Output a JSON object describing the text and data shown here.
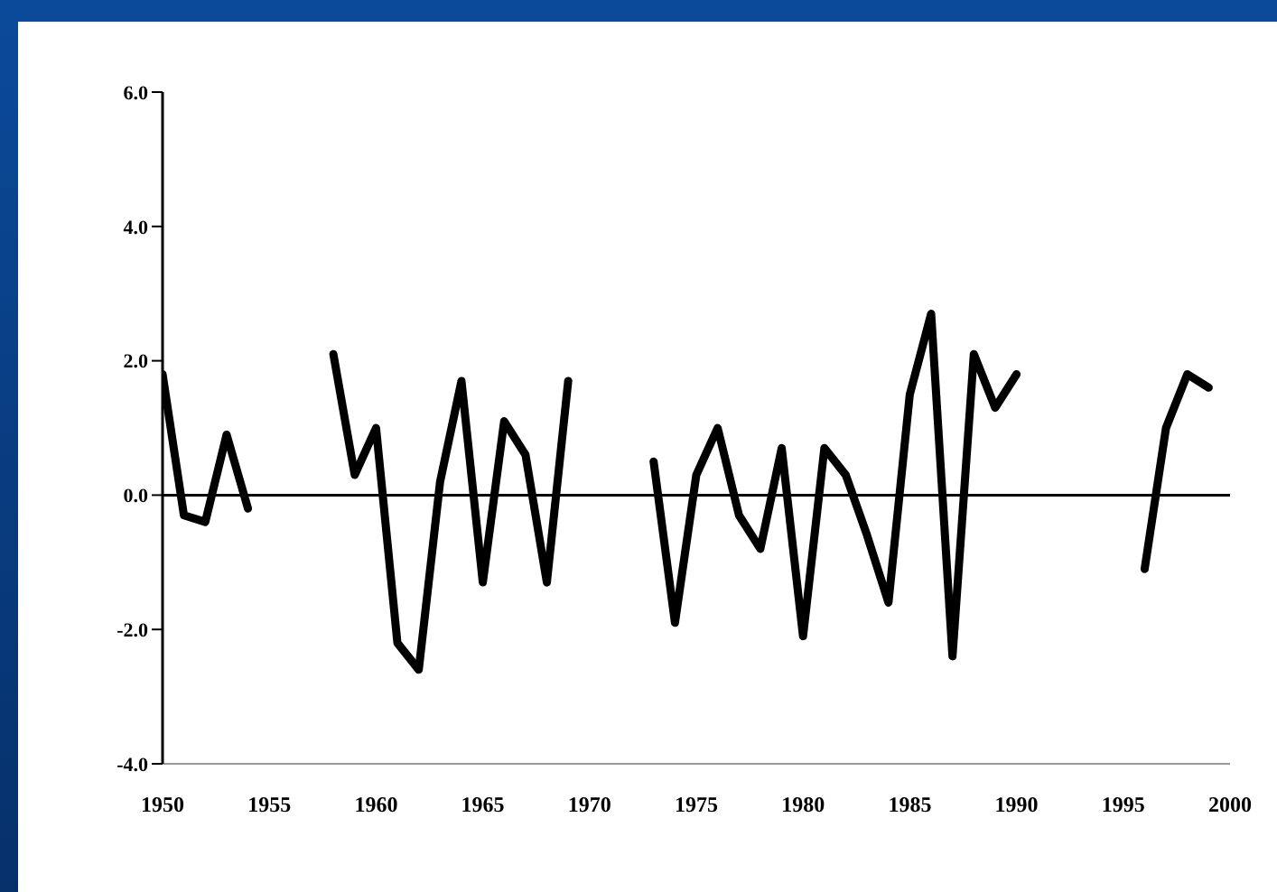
{
  "chart_data": {
    "type": "line",
    "x": [
      1950,
      1951,
      1952,
      1953,
      1954,
      1955,
      1956,
      1957,
      1958,
      1959,
      1960,
      1961,
      1962,
      1963,
      1964,
      1965,
      1966,
      1967,
      1968,
      1969,
      1970,
      1971,
      1972,
      1973,
      1974,
      1975,
      1976,
      1977,
      1978,
      1979,
      1980,
      1981,
      1982,
      1983,
      1984,
      1985,
      1986,
      1987,
      1988,
      1989,
      1990,
      1991,
      1992,
      1993,
      1994,
      1995,
      1996,
      1997,
      1998,
      1999
    ],
    "series": [
      {
        "color": "#000000",
        "values": [
          1.8,
          -0.3,
          -0.4,
          0.9,
          -0.2,
          null,
          null,
          null,
          2.1,
          0.3,
          1.0,
          -2.2,
          -2.6,
          0.2,
          1.7,
          -1.3,
          1.1,
          0.6,
          -1.3,
          1.7,
          null,
          null,
          null,
          0.5,
          -1.9,
          0.3,
          1.0,
          -0.3,
          -0.8,
          0.7,
          -2.1,
          0.7,
          0.3,
          -0.6,
          -1.6,
          1.5,
          2.7,
          -2.4,
          2.1,
          1.3,
          1.8,
          null,
          null,
          null,
          null,
          null,
          -1.1,
          1.0,
          1.8,
          1.6
        ]
      }
    ],
    "xlim": [
      1950,
      2000
    ],
    "xticks": [
      1950,
      1955,
      1960,
      1965,
      1970,
      1975,
      1980,
      1985,
      1990,
      1995,
      2000
    ],
    "ylim": [
      -4,
      6
    ],
    "yticks": [
      {
        "value": -4,
        "label": "-4.0"
      },
      {
        "value": -2,
        "label": "-2.0"
      },
      {
        "value": 0,
        "label": "0.0"
      },
      {
        "value": 2,
        "label": "2.0"
      },
      {
        "value": 4,
        "label": "4.0"
      },
      {
        "value": 6,
        "label": "6.0"
      }
    ],
    "ref_lines": [
      {
        "axis": "y",
        "value": 0,
        "color": "#000000"
      }
    ],
    "grid": false,
    "legend": false,
    "marker": "none",
    "line_style": "solid"
  }
}
